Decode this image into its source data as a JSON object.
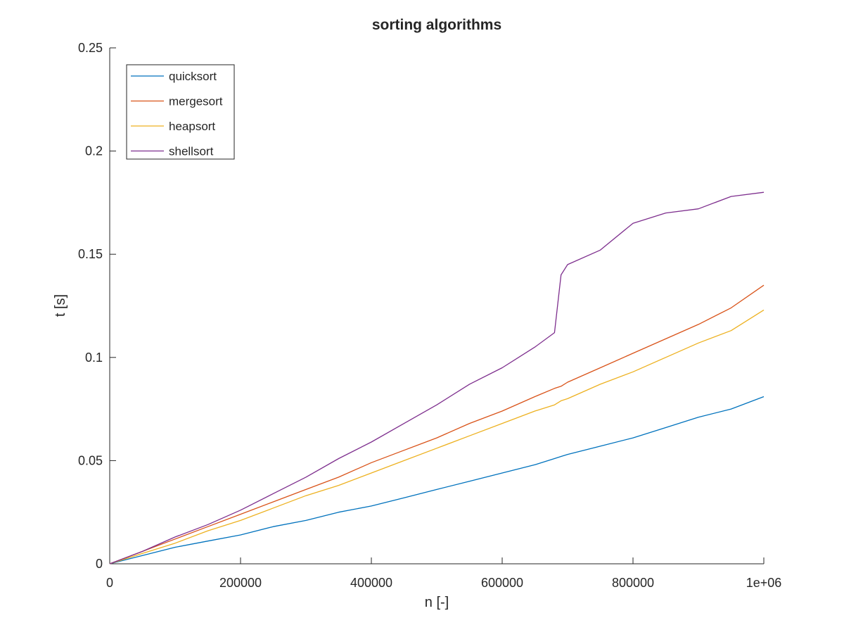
{
  "chart_data": {
    "type": "line",
    "title": "sorting algorithms",
    "xlabel": "n [-]",
    "ylabel": "t [s]",
    "xlim": [
      0,
      1000000
    ],
    "ylim": [
      0,
      0.25
    ],
    "xticks": [
      0,
      200000,
      400000,
      600000,
      800000,
      1000000
    ],
    "xtick_labels": [
      "0",
      "200000",
      "400000",
      "600000",
      "800000",
      "1e+06"
    ],
    "yticks": [
      0,
      0.05,
      0.1,
      0.15,
      0.2,
      0.25
    ],
    "ytick_labels": [
      "0",
      "0.05",
      "0.1",
      "0.15",
      "0.2",
      "0.25"
    ],
    "grid": false,
    "legend_position": "top-left",
    "x": [
      0,
      50000,
      100000,
      150000,
      200000,
      250000,
      300000,
      350000,
      400000,
      450000,
      500000,
      550000,
      600000,
      650000,
      680000,
      690000,
      700000,
      750000,
      800000,
      850000,
      900000,
      950000,
      1000000
    ],
    "series": [
      {
        "name": "quicksort",
        "color": "#0072BD",
        "values": [
          0,
          0.004,
          0.008,
          0.011,
          0.014,
          0.018,
          0.021,
          0.025,
          0.028,
          0.032,
          0.036,
          0.04,
          0.044,
          0.048,
          0.051,
          0.052,
          0.053,
          0.057,
          0.061,
          0.066,
          0.071,
          0.075,
          0.081
        ]
      },
      {
        "name": "mergesort",
        "color": "#D95319",
        "values": [
          0,
          0.006,
          0.012,
          0.018,
          0.024,
          0.03,
          0.036,
          0.042,
          0.049,
          0.055,
          0.061,
          0.068,
          0.074,
          0.081,
          0.085,
          0.086,
          0.088,
          0.095,
          0.102,
          0.109,
          0.116,
          0.124,
          0.135
        ]
      },
      {
        "name": "heapsort",
        "color": "#EDB120",
        "values": [
          0,
          0.005,
          0.01,
          0.016,
          0.021,
          0.027,
          0.033,
          0.038,
          0.044,
          0.05,
          0.056,
          0.062,
          0.068,
          0.074,
          0.077,
          0.079,
          0.08,
          0.087,
          0.093,
          0.1,
          0.107,
          0.113,
          0.123
        ]
      },
      {
        "name": "shellsort",
        "color": "#7E2F8E",
        "values": [
          0,
          0.006,
          0.013,
          0.019,
          0.026,
          0.034,
          0.042,
          0.051,
          0.059,
          0.068,
          0.077,
          0.087,
          0.095,
          0.105,
          0.112,
          0.14,
          0.145,
          0.152,
          0.165,
          0.17,
          0.172,
          0.178,
          0.18
        ]
      }
    ]
  }
}
